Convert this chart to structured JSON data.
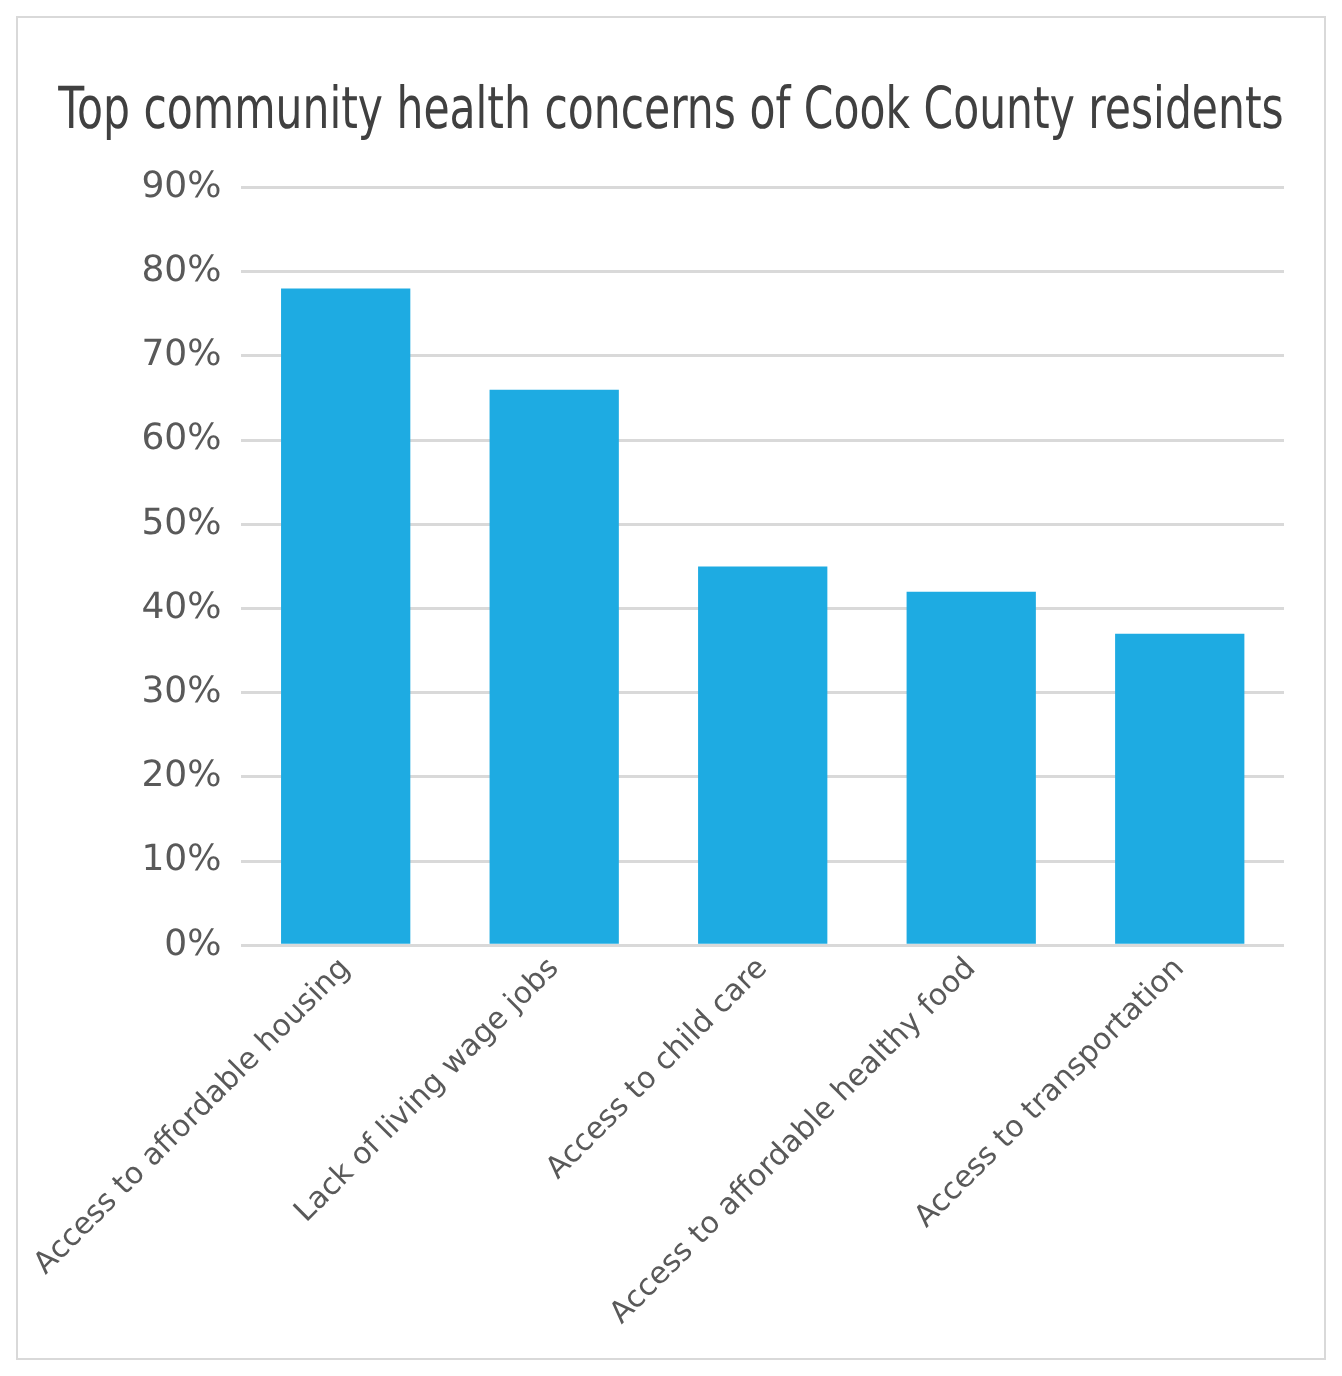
{
  "chart_data": {
    "type": "bar",
    "title": "Top community health concerns of Cook County residents",
    "categories": [
      "Access to affordable housing",
      "Lack of living wage jobs",
      "Access to child care",
      "Access to affordable healthy food",
      "Access to transportation"
    ],
    "values": [
      78,
      66,
      45,
      42,
      37
    ],
    "color": "#1eabe2",
    "ylim": [
      0,
      90
    ],
    "yticks": [
      {
        "value": 0,
        "label": "0%"
      },
      {
        "value": 10,
        "label": "10%"
      },
      {
        "value": 20,
        "label": "20%"
      },
      {
        "value": 30,
        "label": "30%"
      },
      {
        "value": 40,
        "label": "40%"
      },
      {
        "value": 50,
        "label": "50%"
      },
      {
        "value": 60,
        "label": "60%"
      },
      {
        "value": 70,
        "label": "70%"
      },
      {
        "value": 80,
        "label": "80%"
      },
      {
        "value": 90,
        "label": "90%"
      }
    ],
    "grid": "y"
  }
}
